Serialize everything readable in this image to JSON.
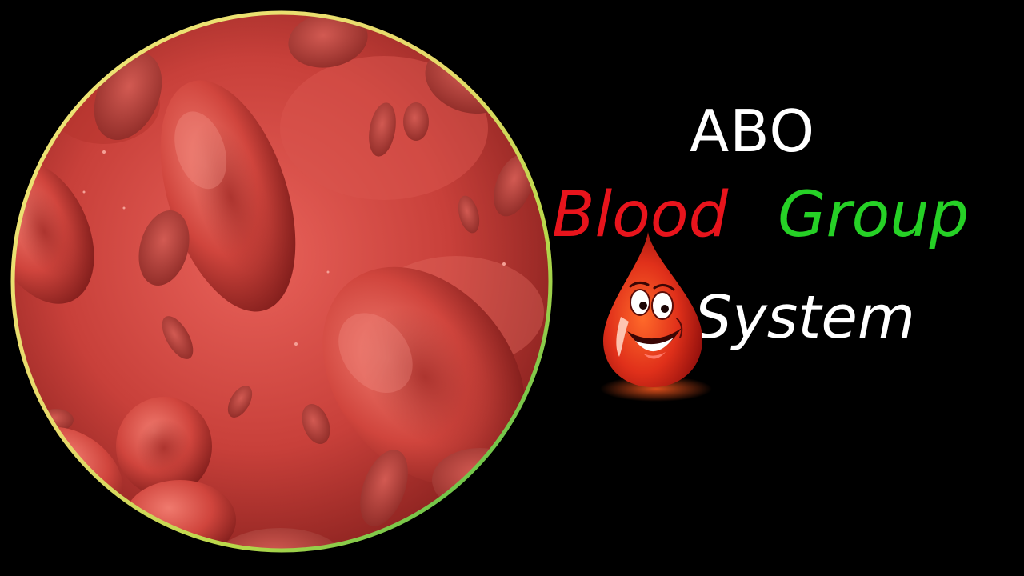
{
  "title": {
    "line1": "ABO",
    "line2_word1": "Blood",
    "line2_word2": "Group",
    "line3": "System"
  },
  "colors": {
    "background": "#000000",
    "title_white": "#ffffff",
    "blood_red": "#e8141c",
    "group_green": "#26d126",
    "cell_red": "#c8322e",
    "ring_yellow": "#e8e05a",
    "ring_green": "#3fbf3f"
  },
  "illustration": {
    "main_image": "red-blood-cells-illustration",
    "mascot": "happy-blood-drop-mascot"
  }
}
